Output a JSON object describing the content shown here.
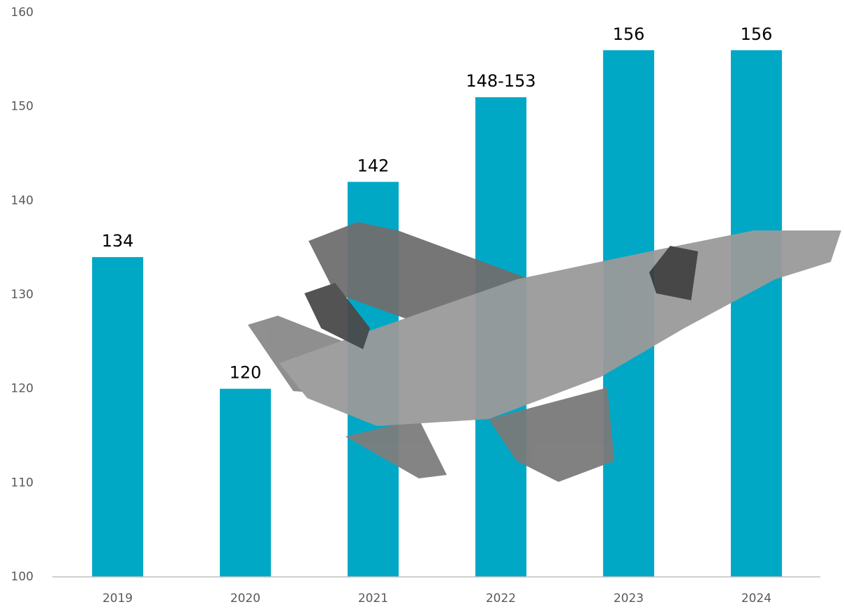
{
  "chart_data": {
    "type": "bar",
    "categories": [
      "2019",
      "2020",
      "2021",
      "2022",
      "2023",
      "2024"
    ],
    "values": [
      134,
      120,
      142,
      151,
      156,
      156
    ],
    "value_labels": [
      "134",
      "120",
      "142",
      "148-153",
      "156",
      "156"
    ],
    "color": "#00a8c6",
    "ylim": [
      100,
      160
    ],
    "yticks": [
      100,
      110,
      120,
      130,
      140,
      150,
      160
    ],
    "grid": false
  }
}
